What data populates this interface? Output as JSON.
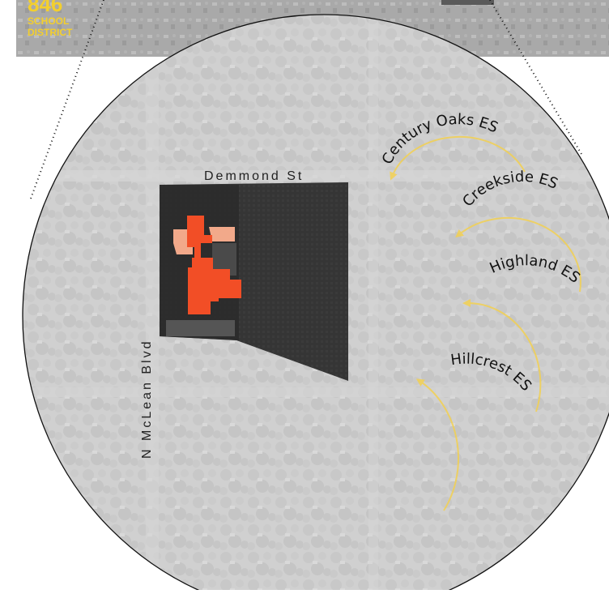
{
  "logo": {
    "number": "846",
    "line1": "SCHOOL",
    "line2": "DISTRICT"
  },
  "streets": {
    "north": "Demmond St",
    "west": "N McLean Blvd"
  },
  "schools": [
    {
      "label": "Century Oaks ES"
    },
    {
      "label": "Creekside ES"
    },
    {
      "label": "Highland ES"
    },
    {
      "label": "Hillcrest ES"
    }
  ],
  "colors": {
    "building_primary": "#f24e26",
    "building_secondary": "#f2a98a",
    "arrow": "#f5d14a",
    "logo": "#f3cf2e",
    "map_tint": "#cfcfcf",
    "site_dark": "#3a3a3a"
  }
}
